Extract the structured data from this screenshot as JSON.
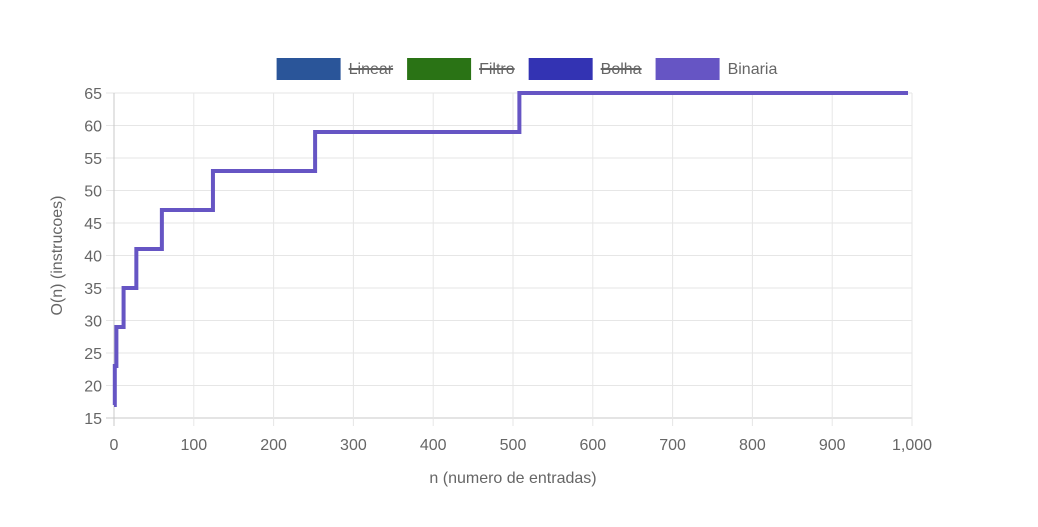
{
  "chart_data": {
    "type": "line",
    "xlabel": "n (numero de entradas)",
    "ylabel": "O(n) (instrucoes)",
    "xlim": [
      0,
      1000
    ],
    "ylim": [
      15,
      65
    ],
    "x_ticks": [
      0,
      100,
      200,
      300,
      400,
      500,
      600,
      700,
      800,
      900,
      1000
    ],
    "x_tick_labels": [
      "0",
      "100",
      "200",
      "300",
      "400",
      "500",
      "600",
      "700",
      "800",
      "900",
      "1,000"
    ],
    "y_ticks": [
      15,
      20,
      25,
      30,
      35,
      40,
      45,
      50,
      55,
      60,
      65
    ],
    "grid": true,
    "legend_position": "top-center",
    "legend": [
      {
        "name": "Linear",
        "color": "#2a5599",
        "hidden": true
      },
      {
        "name": "Filtro",
        "color": "#2a7315",
        "hidden": true
      },
      {
        "name": "Bolha",
        "color": "#3333b3",
        "hidden": true
      },
      {
        "name": "Binaria",
        "color": "#6655c4",
        "hidden": false
      }
    ],
    "series": [
      {
        "name": "Binaria",
        "color": "#6655c4",
        "points": [
          [
            0,
            17
          ],
          [
            1,
            17
          ],
          [
            1,
            23
          ],
          [
            3,
            23
          ],
          [
            3,
            29
          ],
          [
            12,
            29
          ],
          [
            12,
            35
          ],
          [
            28,
            35
          ],
          [
            28,
            41
          ],
          [
            60,
            41
          ],
          [
            60,
            47
          ],
          [
            124,
            47
          ],
          [
            124,
            53
          ],
          [
            252,
            53
          ],
          [
            252,
            59
          ],
          [
            508,
            59
          ],
          [
            508,
            65
          ],
          [
            995,
            65
          ]
        ]
      }
    ]
  }
}
